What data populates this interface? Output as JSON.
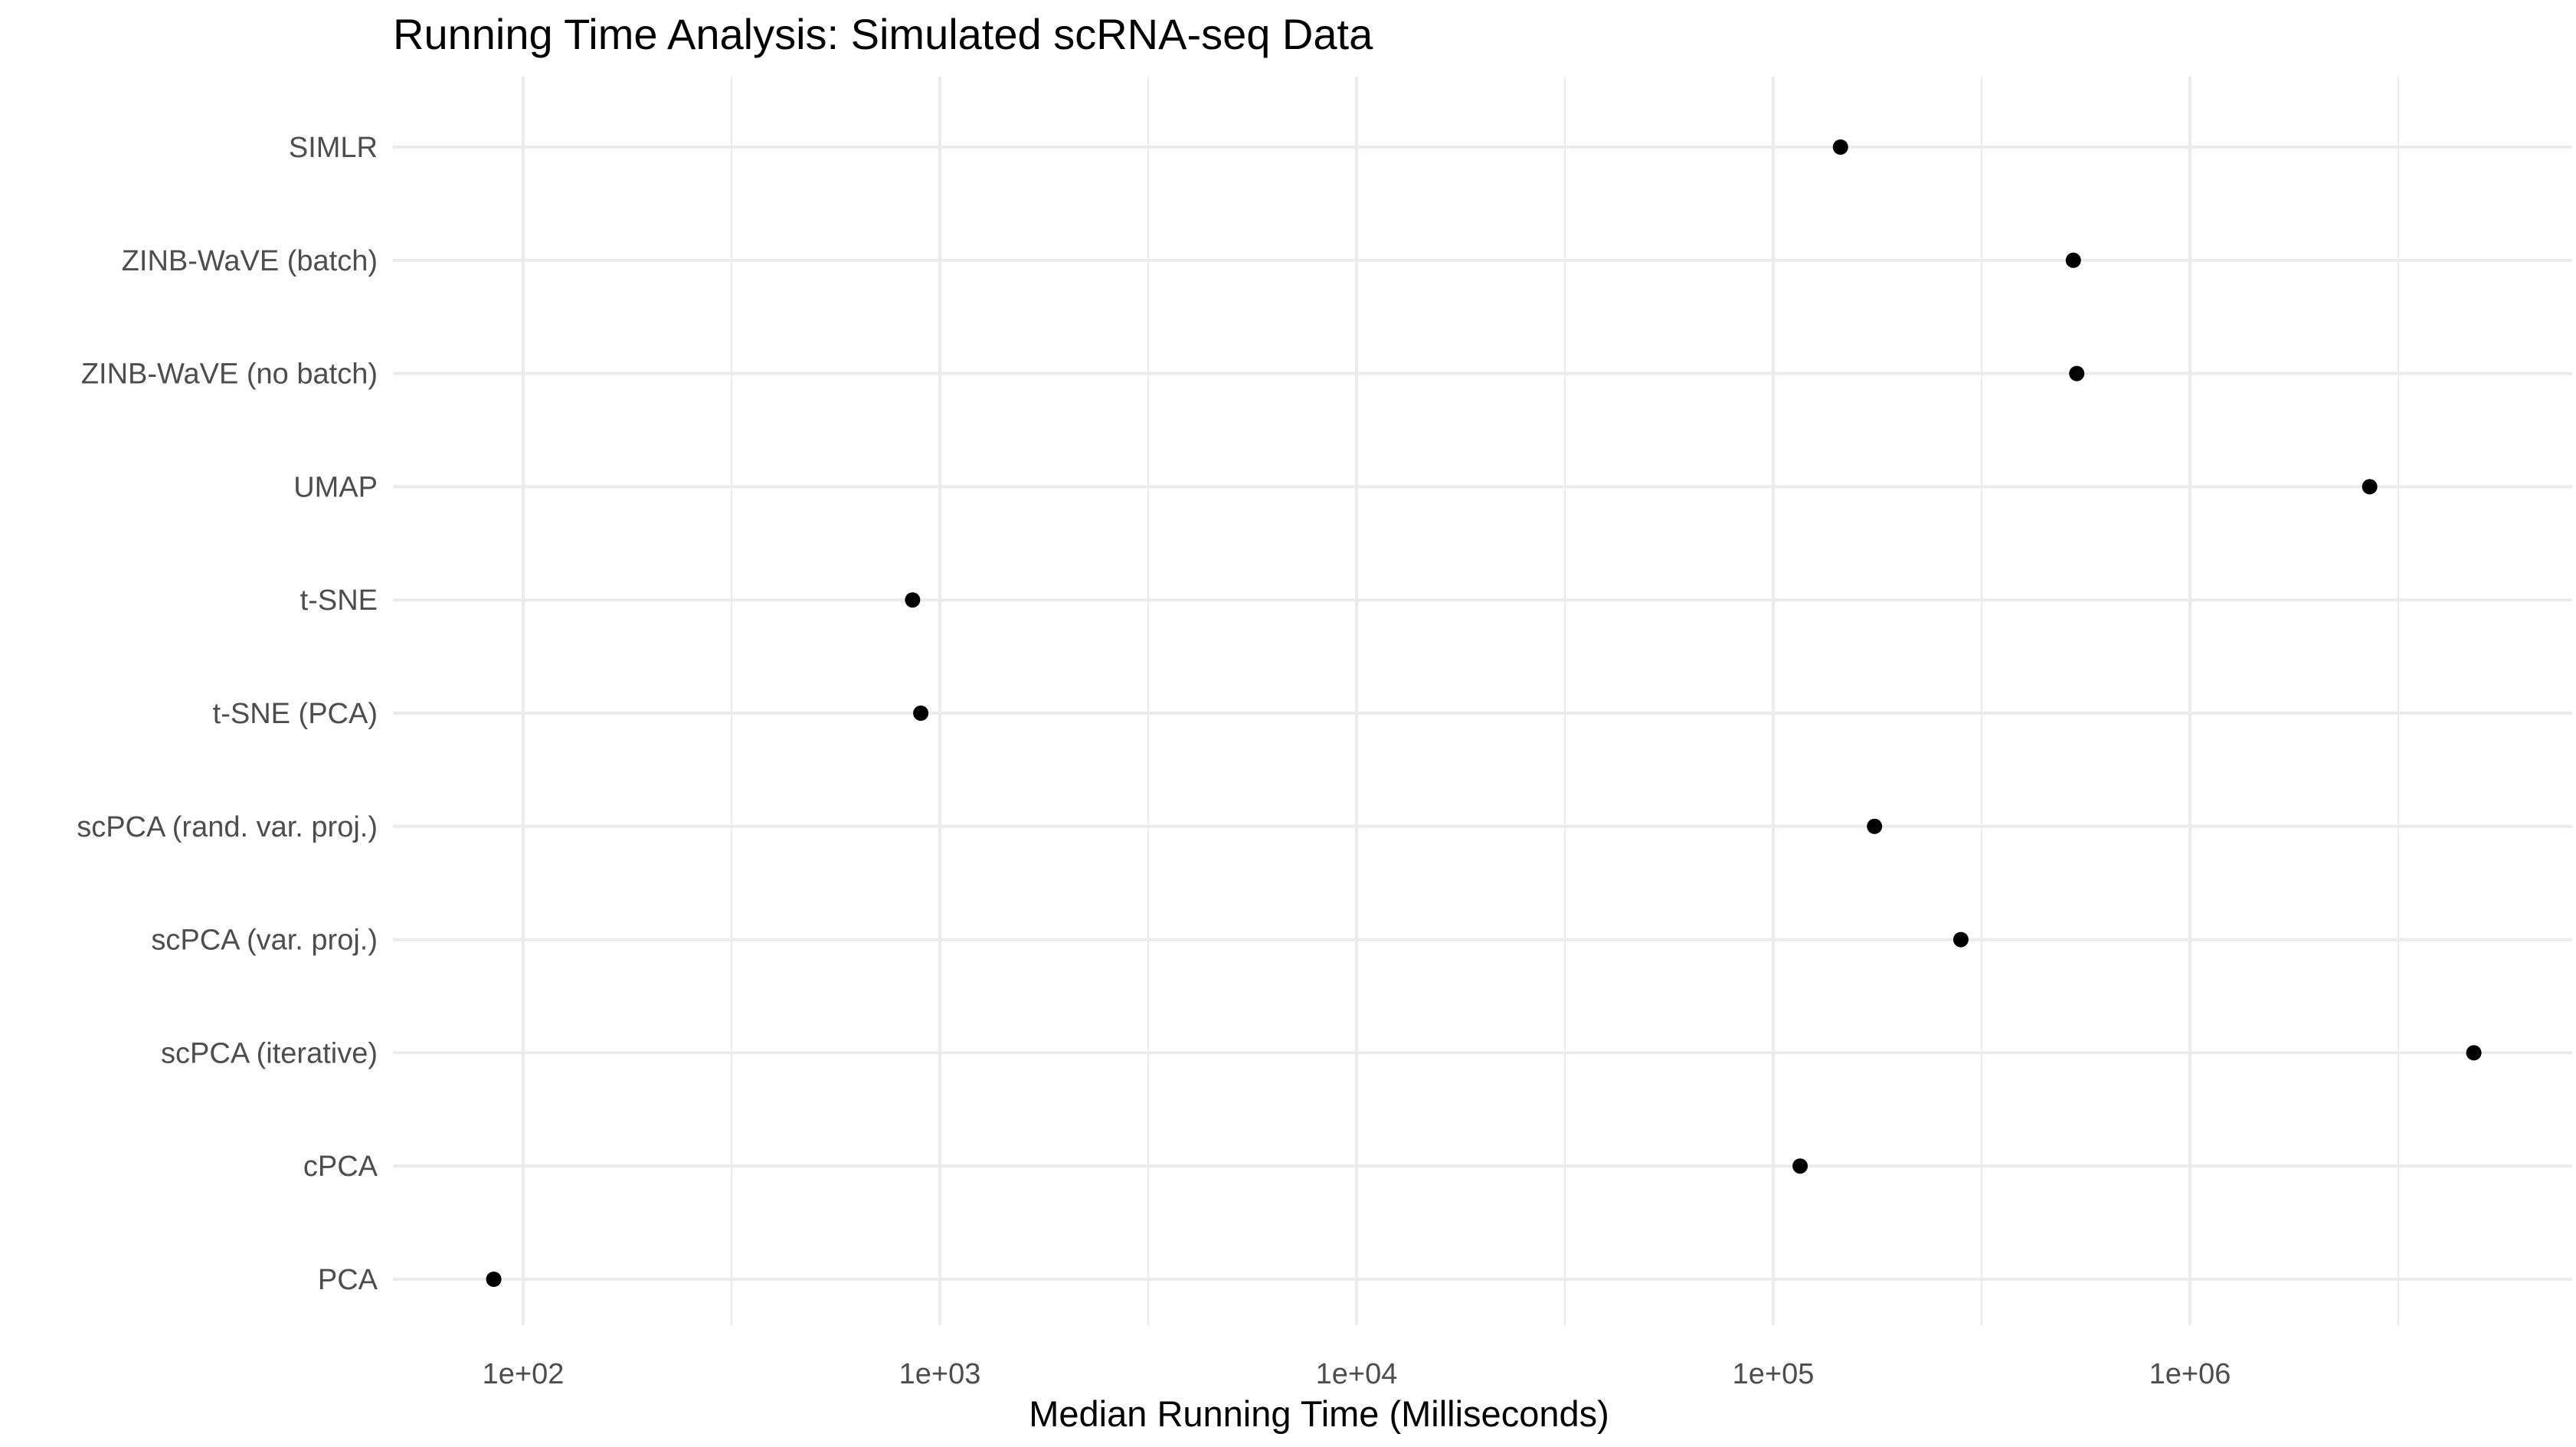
{
  "chart_data": {
    "type": "scatter",
    "title": "Running Time Analysis: Simulated scRNA-seq Data",
    "xlabel": "Median Running Time (Milliseconds)",
    "ylabel": "",
    "x_scale": "log10",
    "xlim": [
      50,
      7000000
    ],
    "x_ticks": [
      100,
      1000,
      10000,
      100000,
      1000000
    ],
    "x_tick_labels": [
      "1e+02",
      "1e+03",
      "1e+04",
      "1e+05",
      "1e+06"
    ],
    "grid": true,
    "legend": "none",
    "point_color": "#000000",
    "categories": [
      "SIMLR",
      "ZINB-WaVE (batch)",
      "ZINB-WaVE (no batch)",
      "UMAP",
      "t-SNE",
      "t-SNE (PCA)",
      "scPCA (rand. var. proj.)",
      "scPCA (var. proj.)",
      "scPCA (iterative)",
      "cPCA",
      "PCA"
    ],
    "values": [
      145000,
      525000,
      535000,
      2700000,
      860,
      900,
      175000,
      282000,
      4800000,
      116000,
      85
    ]
  }
}
